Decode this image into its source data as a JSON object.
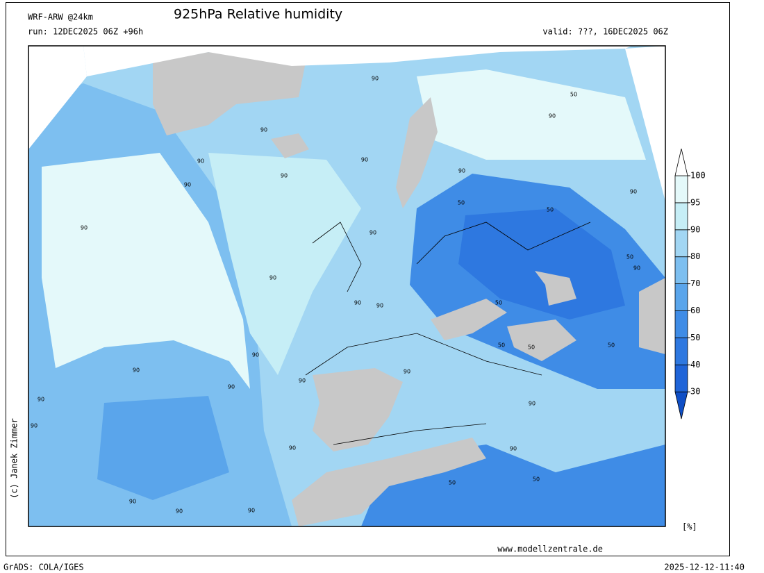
{
  "header": {
    "model": "WRF-ARW @24km",
    "title": "925hPa Relative humidity",
    "run": "run: 12DEC2025 06Z +96h",
    "valid": "valid: ???, 16DEC2025 06Z"
  },
  "colorbar": {
    "ticks": [
      30,
      40,
      50,
      60,
      70,
      80,
      90,
      95,
      100
    ],
    "colors": [
      "#0f4fc6",
      "#1f64d8",
      "#2e78e0",
      "#3f8ce6",
      "#5aa5eb",
      "#7dbff0",
      "#a2d6f3",
      "#c6eef6",
      "#e4f9fa",
      "#ffffff"
    ],
    "unit": "[%]"
  },
  "contour_labels": [
    90,
    50,
    90,
    90,
    90,
    90,
    90,
    90,
    90,
    90,
    50,
    50,
    90,
    90,
    50,
    90,
    90,
    90,
    90,
    50,
    50,
    50,
    50,
    90,
    90,
    90,
    90,
    90,
    90,
    90,
    90,
    90,
    90,
    50,
    50,
    90,
    90,
    90
  ],
  "footer": {
    "copyright": "(c) Janek Zimmer",
    "website": "www.modellzentrale.de",
    "grads": "GrADS: COLA/IGES",
    "timestamp": "2025-12-12-11:40"
  }
}
